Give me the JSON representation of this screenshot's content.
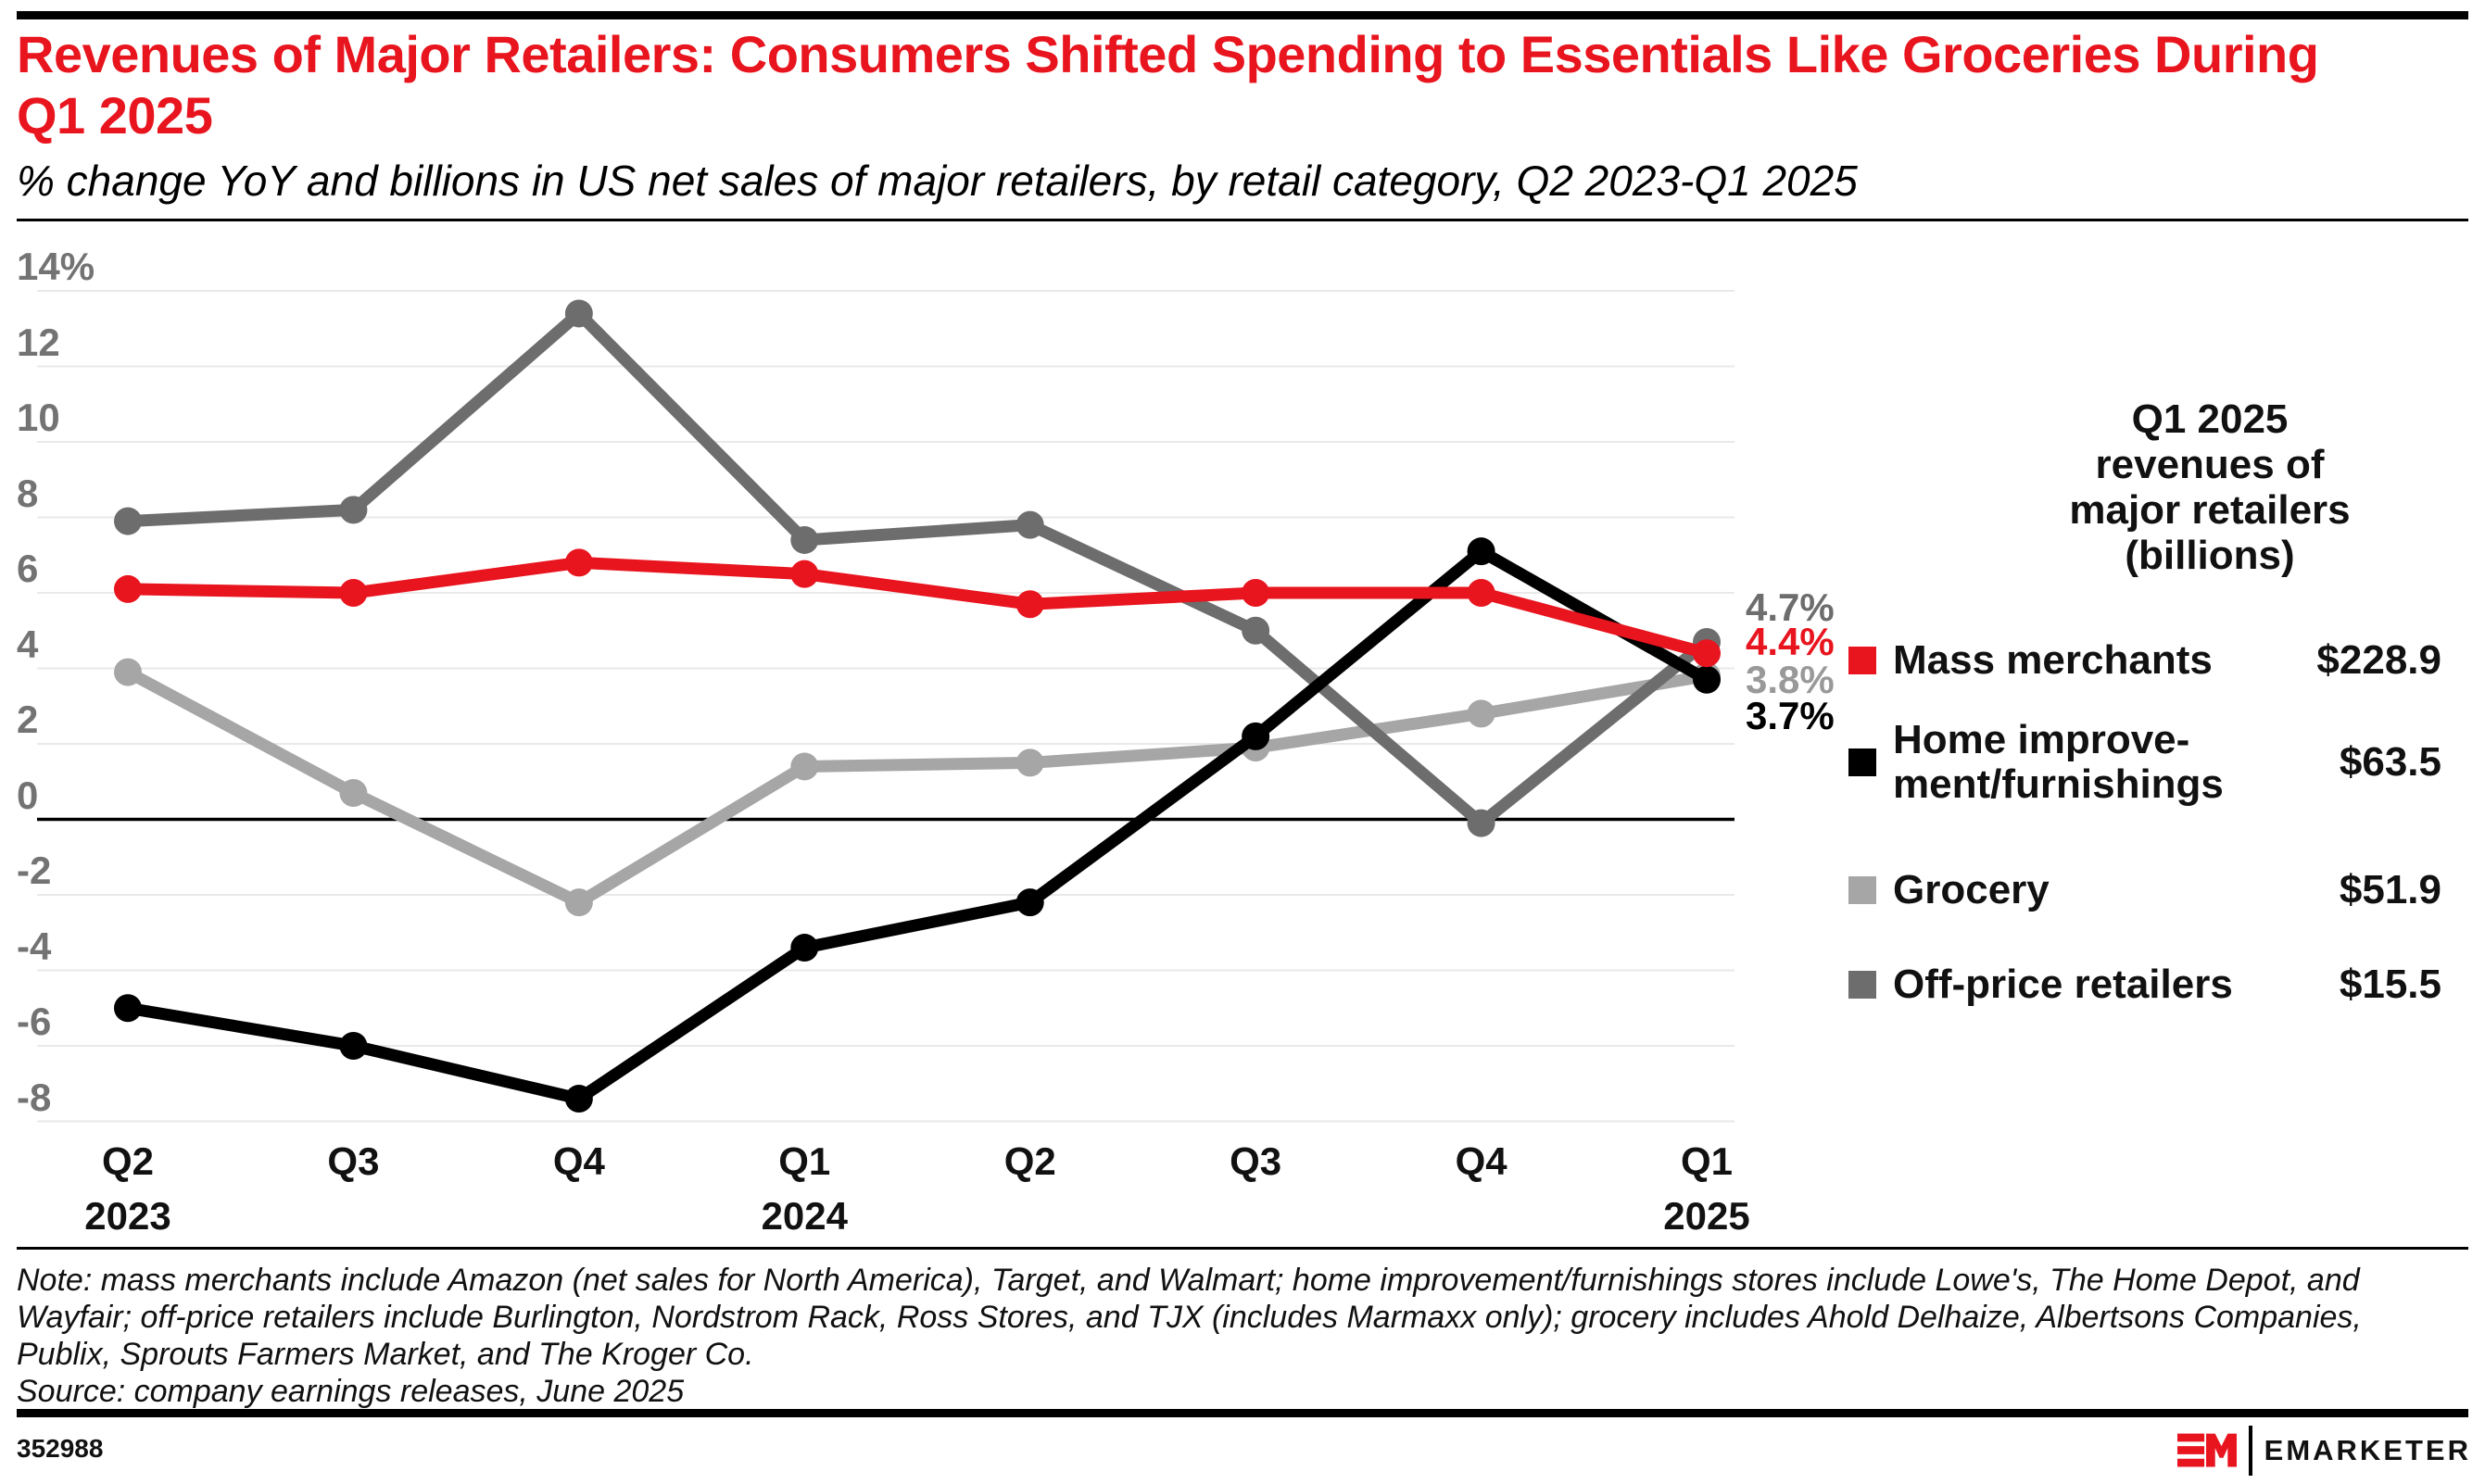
{
  "header": {
    "title_line1": "Revenues of Major Retailers: Consumers Shifted Spending to Essentials Like Groceries During",
    "title_line2": "Q1 2025",
    "subtitle": "% change YoY and billions in US net sales of major retailers, by retail category, Q2 2023-Q1 2025"
  },
  "chart_data": {
    "type": "line",
    "x_categories": [
      {
        "quarter": "Q2",
        "year": "2023"
      },
      {
        "quarter": "Q3"
      },
      {
        "quarter": "Q4"
      },
      {
        "quarter": "Q1",
        "year": "2024"
      },
      {
        "quarter": "Q2"
      },
      {
        "quarter": "Q3"
      },
      {
        "quarter": "Q4"
      },
      {
        "quarter": "Q1",
        "year": "2025"
      }
    ],
    "y_axis": {
      "unit": "%",
      "min": -8,
      "max": 14,
      "grid": true,
      "ticks": [
        {
          "value": 14,
          "label": "14%"
        },
        {
          "value": 12,
          "label": "12"
        },
        {
          "value": 10,
          "label": "10"
        },
        {
          "value": 8,
          "label": "8"
        },
        {
          "value": 6,
          "label": "6"
        },
        {
          "value": 4,
          "label": "4"
        },
        {
          "value": 2,
          "label": "2"
        },
        {
          "value": 0,
          "label": "0"
        },
        {
          "value": -2,
          "label": "-2"
        },
        {
          "value": -4,
          "label": "-4"
        },
        {
          "value": -6,
          "label": "-6"
        },
        {
          "value": -8,
          "label": "-8"
        }
      ]
    },
    "series": [
      {
        "name": "Mass merchants",
        "color": "#e8141e",
        "values": [
          6.1,
          6.0,
          6.8,
          6.5,
          5.7,
          6.0,
          6.0,
          4.4
        ],
        "end_label": "4.4%"
      },
      {
        "name": "Home improvement/furnishings",
        "color": "#000000",
        "values": [
          -5.0,
          -6.0,
          -7.4,
          -3.4,
          -2.2,
          2.2,
          7.1,
          3.7
        ],
        "end_label": "3.7%"
      },
      {
        "name": "Grocery",
        "color": "#a6a6a6",
        "values": [
          3.9,
          0.7,
          -2.2,
          1.4,
          1.5,
          1.9,
          2.8,
          3.8
        ],
        "end_label": "3.8%"
      },
      {
        "name": "Off-price retailers",
        "color": "#6d6d6d",
        "values": [
          7.9,
          8.2,
          13.4,
          7.4,
          7.8,
          5.0,
          -0.1,
          4.7
        ],
        "end_label": "4.7%"
      }
    ],
    "end_labels": [
      {
        "text": "4.7%",
        "color": "#6d6d6d"
      },
      {
        "text": "4.4%",
        "color": "#e8141e"
      },
      {
        "text": "3.8%",
        "color": "#999999"
      },
      {
        "text": "3.7%",
        "color": "#000000"
      }
    ],
    "legend_position": "right"
  },
  "legend": {
    "header_lines": [
      "Q1 2025",
      "revenues of",
      "major retailers",
      "(billions)"
    ],
    "items": [
      {
        "label_lines": [
          "Mass merchants"
        ],
        "value": "$228.9",
        "color": "#e8141e"
      },
      {
        "label_lines": [
          "Home improve-",
          "ment/furnishings"
        ],
        "value": "$63.5",
        "color": "#000000"
      },
      {
        "label_lines": [
          "Grocery"
        ],
        "value": "$51.9",
        "color": "#a6a6a6"
      },
      {
        "label_lines": [
          "Off-price retailers"
        ],
        "value": "$15.5",
        "color": "#6d6d6d"
      }
    ]
  },
  "footnote": {
    "note_lines": [
      "Note: mass merchants include Amazon (net sales for North America), Target, and Walmart; home improvement/furnishings stores include Lowe's, The Home Depot, and",
      "Wayfair; off-price retailers include Burlington, Nordstrom Rack, Ross Stores, and TJX (includes Marmaxx only); grocery includes Ahold Delhaize, Albertsons Companies,",
      "Publix, Sprouts Farmers Market, and The Kroger Co."
    ],
    "source": "Source: company earnings releases, June 2025"
  },
  "footer": {
    "chart_id": "352988",
    "logo_mark": "EM",
    "logo_text": "EMARKETER"
  }
}
